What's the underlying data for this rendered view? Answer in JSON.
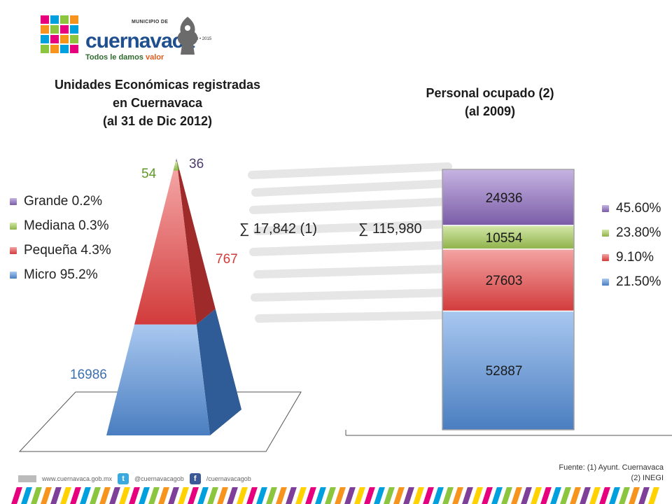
{
  "logo": {
    "municipio": "MUNICIPIO DE",
    "name": "cuernavaca",
    "years": "2013 • 2015",
    "tagline_prefix": "Todos le damos ",
    "tagline_accent": "valor"
  },
  "chart_data": [
    {
      "type": "pyramid",
      "title": [
        "Unidades Económicas registradas",
        "en Cuernavaca",
        "(al 31 de Dic 2012)"
      ],
      "categories": [
        "Grande 0.2%",
        "Mediana 0.3%",
        "Pequeña 4.3%",
        "Micro 95.2%"
      ],
      "values": [
        36,
        54,
        767,
        16986
      ],
      "colors": [
        "#8064a2",
        "#9bbb59",
        "#e04848",
        "#4f81bd"
      ],
      "annotation": "∑ 17,842 (1)",
      "legend_position": "left"
    },
    {
      "type": "stacked-bar",
      "title": [
        "Personal ocupado (2)",
        "(al 2009)"
      ],
      "categories": [
        "45.60%",
        "23.80%",
        "9.10%",
        "21.50%"
      ],
      "values": [
        52887,
        27603,
        10554,
        24936
      ],
      "colors": [
        "#4f81bd",
        "#e04848",
        "#9bbb59",
        "#8064a2"
      ],
      "legend_colors": [
        "#8064a2",
        "#9bbb59",
        "#e04848",
        "#4f81bd"
      ],
      "annotation": "∑ 115,980",
      "legend_position": "right"
    }
  ],
  "footer": {
    "source_line1": "Fuente: (1) Ayunt. Cuernavaca",
    "source_line2": "(2) INEGI",
    "website": "www.cuernavaca.gob.mx",
    "twitter": "@cuernavacagob",
    "facebook": "/cuernavacagob"
  }
}
